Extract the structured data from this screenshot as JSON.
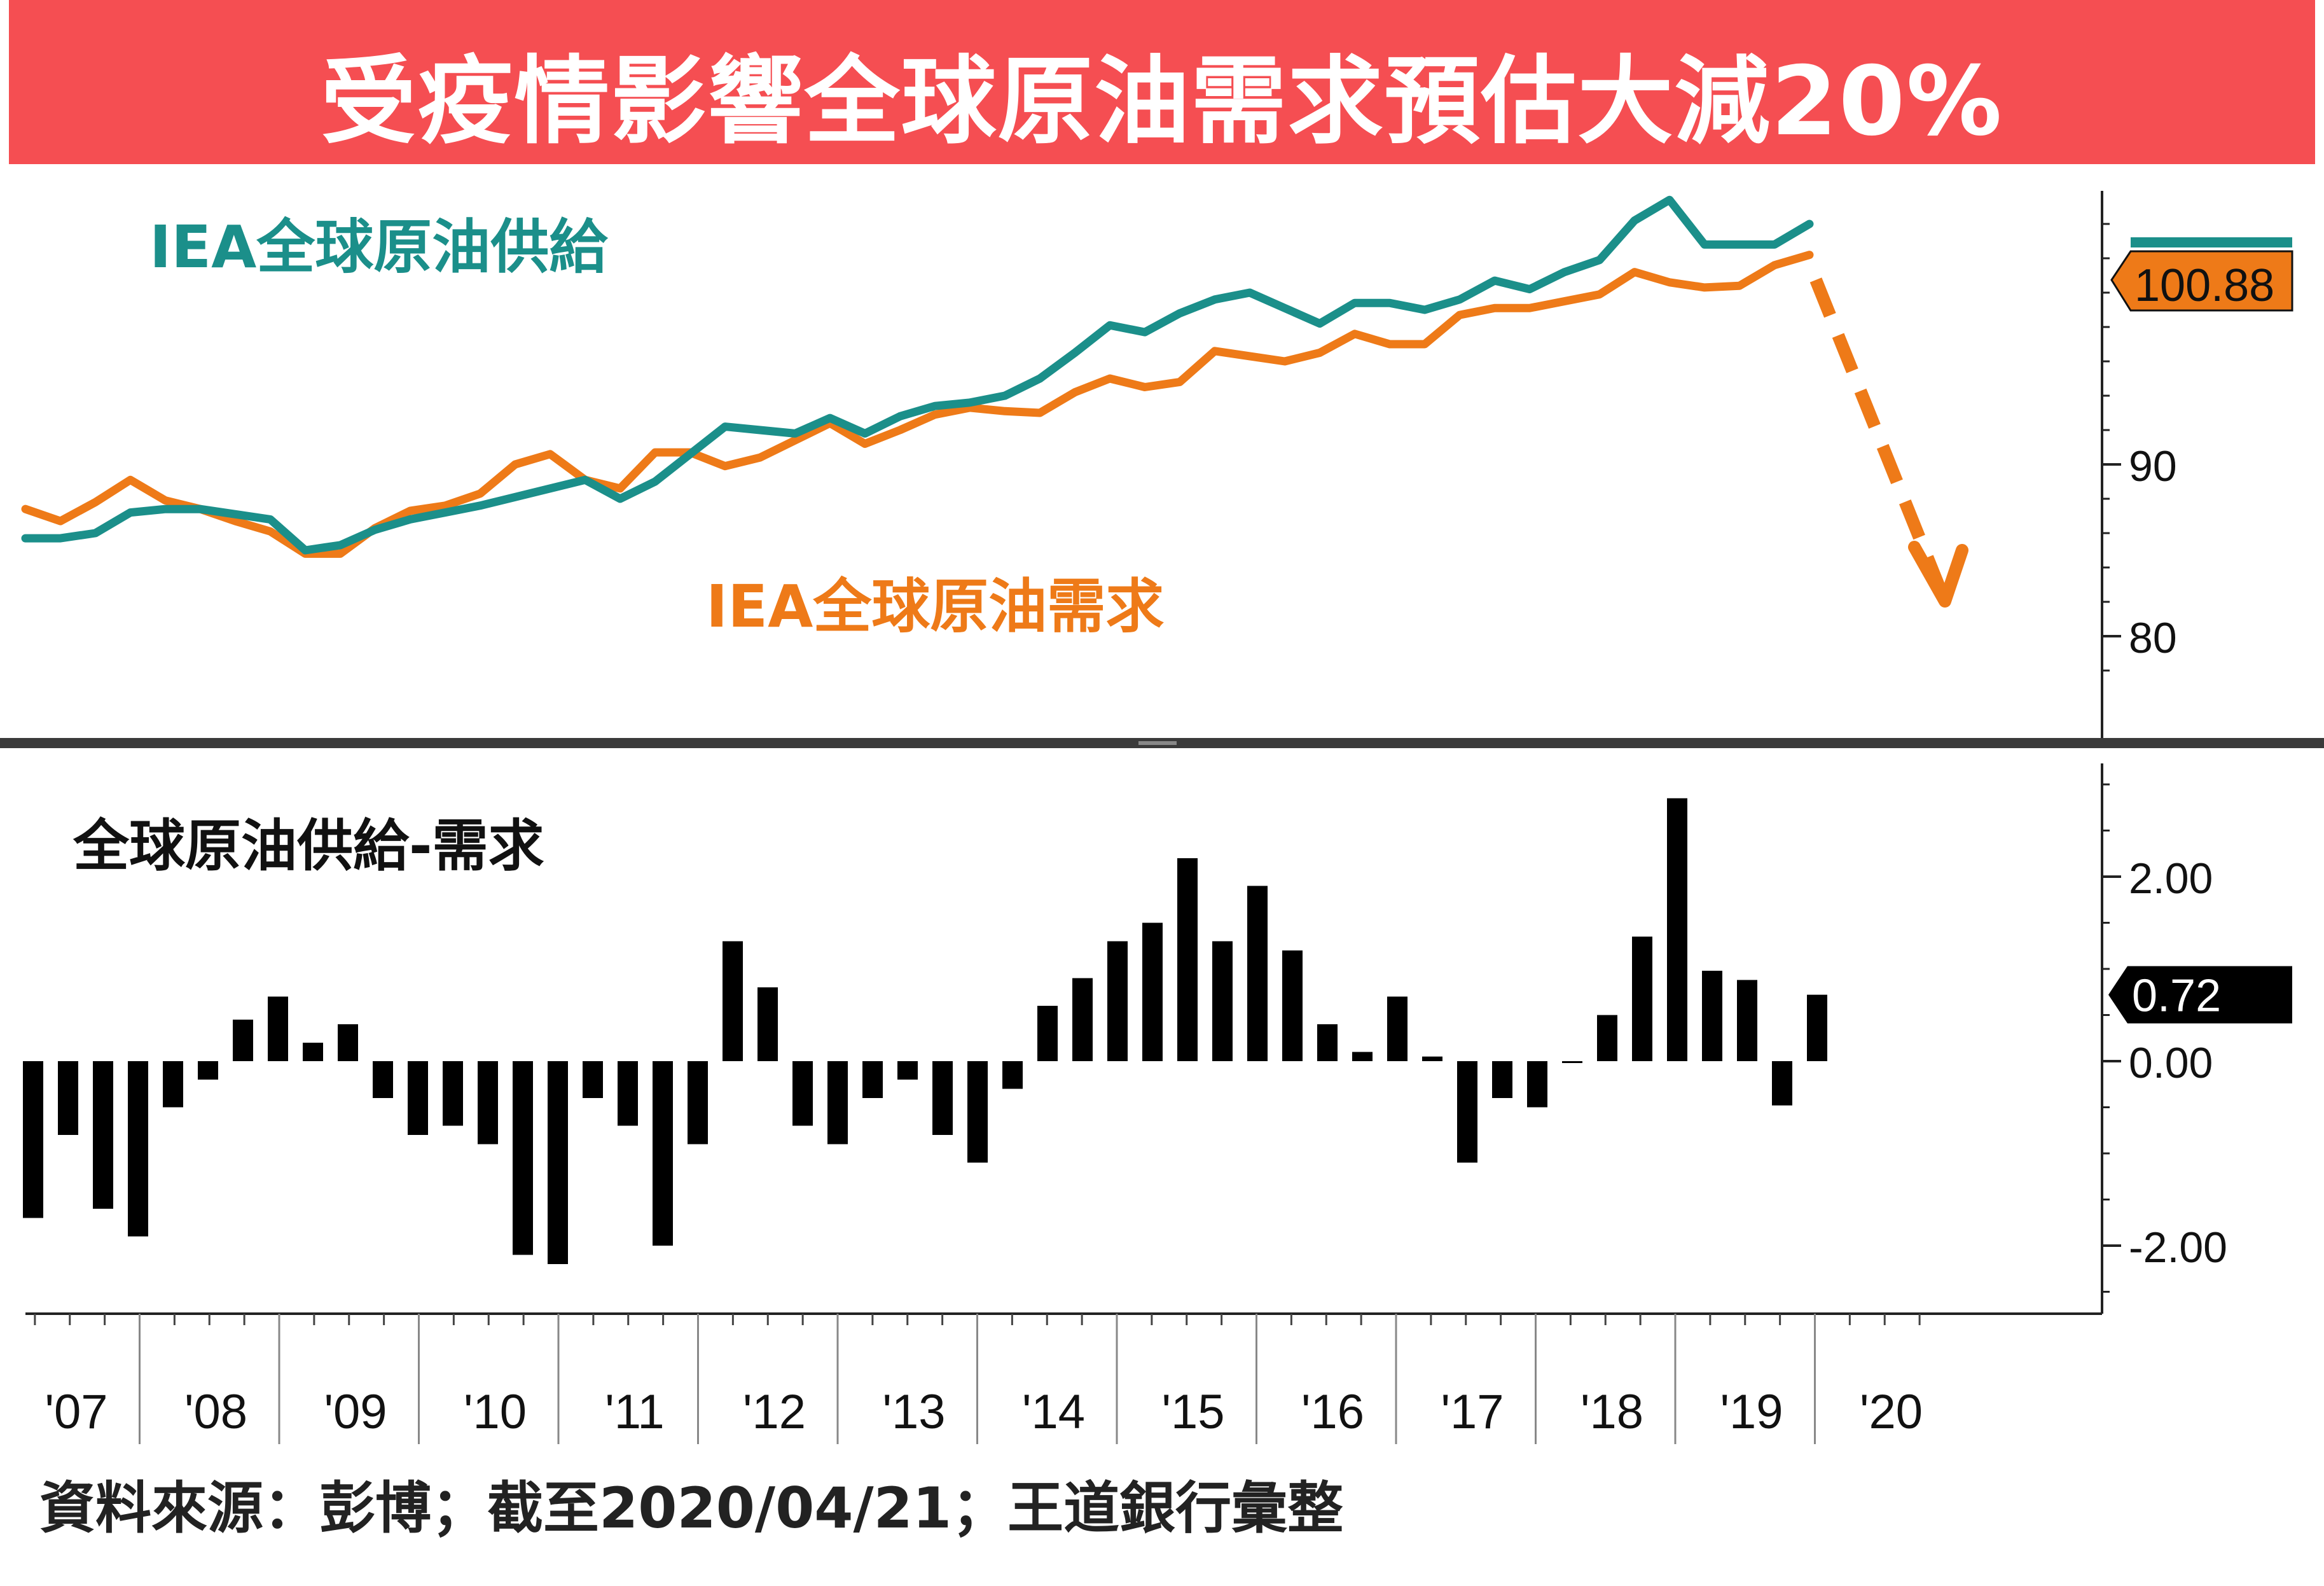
{
  "banner": {
    "title": "受疫情影響全球原油需求預估大減20%"
  },
  "footer": {
    "source": "資料來源：彭博；截至2020/04/21；王道銀行彙整"
  },
  "colors": {
    "banner": "#f54e52",
    "supply": "#1b8f8a",
    "demand": "#ee7a18",
    "bar": "#000000",
    "arrow": "#ee7a18"
  },
  "chart_data": [
    {
      "type": "line",
      "x_labels": [
        "'07",
        "'08",
        "'09",
        "'10",
        "'11",
        "'12",
        "'13",
        "'14",
        "'15",
        "'16",
        "'17",
        "'18",
        "'19",
        "'20"
      ],
      "series": [
        {
          "name": "IEA全球原油供給",
          "values": [
            85.7,
            85.7,
            86.0,
            87.2,
            87.4,
            87.4,
            87.1,
            86.8,
            85.0,
            85.3,
            86.2,
            86.8,
            87.2,
            87.6,
            88.1,
            88.6,
            89.1,
            88.0,
            89.0,
            90.6,
            92.2,
            92.0,
            91.8,
            92.7,
            91.8,
            92.8,
            93.4,
            93.6,
            94.0,
            95.0,
            96.5,
            98.1,
            97.7,
            98.8,
            99.6,
            100.0,
            99.1,
            98.2,
            99.4,
            99.4,
            99.0,
            99.6,
            100.7,
            100.2,
            101.2,
            101.9,
            104.2,
            105.4,
            102.8,
            102.8,
            102.8,
            104.0
          ]
        },
        {
          "name": "IEA全球原油需求",
          "values": [
            87.4,
            86.7,
            87.8,
            89.1,
            87.9,
            87.4,
            86.7,
            86.1,
            84.8,
            84.8,
            86.3,
            87.3,
            87.6,
            88.3,
            90.0,
            90.6,
            89.1,
            88.6,
            90.7,
            90.7,
            89.9,
            90.4,
            91.4,
            92.4,
            91.2,
            92.0,
            92.9,
            93.3,
            93.1,
            93.0,
            94.2,
            95.0,
            94.5,
            94.8,
            96.6,
            96.3,
            96.0,
            96.5,
            97.6,
            97.0,
            97.0,
            98.7,
            99.1,
            99.1,
            99.5,
            99.9,
            101.2,
            100.6,
            100.3,
            100.4,
            101.6,
            102.2
          ]
        }
      ],
      "y_ticks": [
        80,
        90
      ],
      "ylim": [
        74,
        106
      ],
      "last_value_label": "100.88",
      "annotation": "downward dashed arrow"
    },
    {
      "type": "bar",
      "series": [
        {
          "name": "全球原油供給-需求",
          "values": [
            -1.7,
            -0.8,
            -1.6,
            -1.9,
            -0.5,
            -0.2,
            0.45,
            0.7,
            0.2,
            0.4,
            -0.4,
            -0.8,
            -0.7,
            -0.9,
            -2.1,
            -2.2,
            -0.4,
            -0.7,
            -2.0,
            -0.9,
            1.3,
            0.8,
            -0.7,
            -0.9,
            -0.4,
            -0.2,
            -0.8,
            -1.1,
            -0.3,
            0.6,
            0.9,
            1.3,
            1.5,
            2.2,
            1.3,
            1.9,
            1.2,
            0.4,
            0.1,
            0.7,
            0.05,
            -1.1,
            -0.4,
            -0.5,
            0.0,
            0.5,
            1.35,
            2.85,
            0.98,
            0.88,
            -0.48,
            0.72
          ]
        }
      ],
      "y_ticks": [
        "2.00",
        "0.00",
        "-2.00"
      ],
      "ylim": [
        -2.7,
        3.2
      ],
      "last_value_label": "0.72"
    }
  ]
}
